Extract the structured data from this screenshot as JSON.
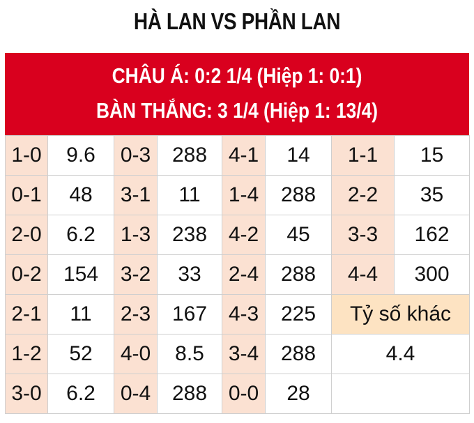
{
  "title": "HÀ LAN VS PHẦN LAN",
  "header": {
    "line1": "CHÂU Á: 0:2 1/4 (Hiệp 1: 0:1)",
    "line2": "BÀN THẮNG: 3 1/4 (Hiệp 1: 13/4)"
  },
  "rows": [
    [
      [
        "1-0",
        "9.6"
      ],
      [
        "0-3",
        "288"
      ],
      [
        "4-1",
        "14"
      ],
      [
        "1-1",
        "15"
      ]
    ],
    [
      [
        "0-1",
        "48"
      ],
      [
        "3-1",
        "11"
      ],
      [
        "1-4",
        "288"
      ],
      [
        "2-2",
        "35"
      ]
    ],
    [
      [
        "2-0",
        "6.2"
      ],
      [
        "1-3",
        "238"
      ],
      [
        "4-2",
        "45"
      ],
      [
        "3-3",
        "162"
      ]
    ],
    [
      [
        "0-2",
        "154"
      ],
      [
        "3-2",
        "33"
      ],
      [
        "2-4",
        "288"
      ],
      [
        "4-4",
        "300"
      ]
    ],
    [
      [
        "2-1",
        "11"
      ],
      [
        "2-3",
        "167"
      ],
      [
        "4-3",
        "225"
      ]
    ],
    [
      [
        "1-2",
        "52"
      ],
      [
        "4-0",
        "8.5"
      ],
      [
        "3-4",
        "288"
      ]
    ],
    [
      [
        "3-0",
        "6.2"
      ],
      [
        "0-4",
        "288"
      ],
      [
        "0-0",
        "28"
      ]
    ]
  ],
  "other": {
    "label": "Tỷ số khác",
    "value": "4.4"
  },
  "colors": {
    "header": "#d9001e",
    "score_cell": "#fbe1d2",
    "other_cell": "#fde3c2"
  }
}
